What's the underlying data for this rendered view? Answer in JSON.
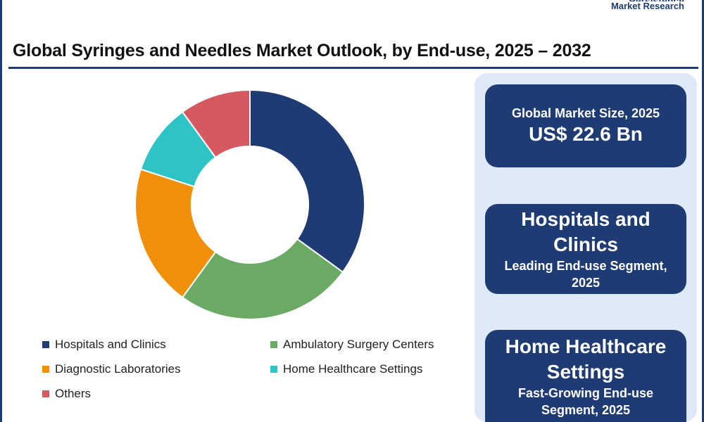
{
  "brand": {
    "name": "Persistence",
    "subtitle": "Market Research"
  },
  "title": "Global Syringes and Needles Market Outlook, by End-use, 2025 – 2032",
  "chart_data": {
    "type": "pie",
    "donut": true,
    "categories": [
      "Hospitals and Clinics",
      "Ambulatory Surgery Centers",
      "Diagnostic Laboratories",
      "Home Healthcare Settings",
      "Others"
    ],
    "values": [
      35,
      25,
      20,
      10,
      10
    ],
    "colors": [
      "#1f3b73",
      "#6aaa64",
      "#f0900a",
      "#2ec4c6",
      "#d45a5f"
    ],
    "legend_position": "bottom"
  },
  "cards": {
    "market_size_label": "Global Market Size, 2025",
    "market_size_value": "US$ 22.6 Bn",
    "leading_segment_name_line1": "Hospitals and",
    "leading_segment_name_line2": "Clinics",
    "leading_segment_desc_line1": "Leading End-use Segment,",
    "leading_segment_desc_line2": "2025",
    "fast_segment_name_line1": "Home Healthcare",
    "fast_segment_name_line2": "Settings",
    "fast_segment_desc_line1": "Fast-Growing End-use",
    "fast_segment_desc_line2": "Segment, 2025"
  },
  "colors": {
    "accent": "#1f3b73",
    "panel_bg": "#dde9f6"
  }
}
